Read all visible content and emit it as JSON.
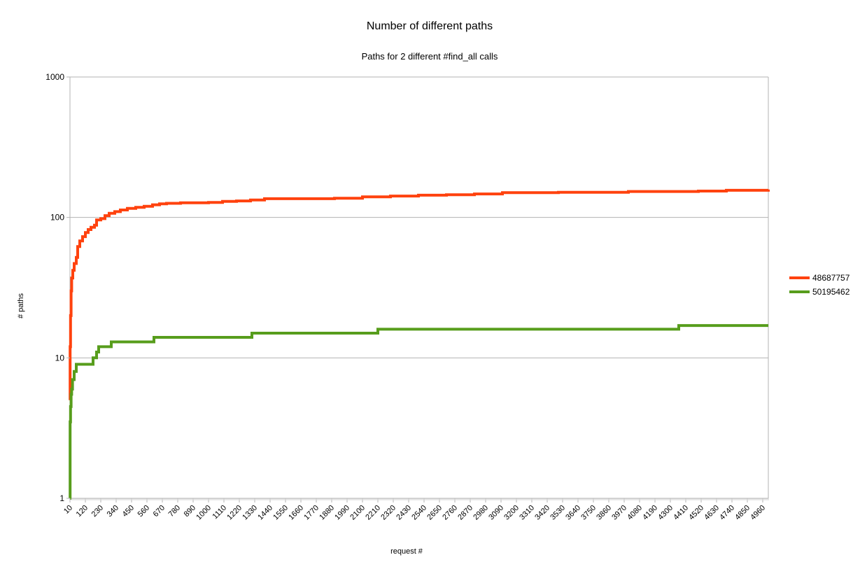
{
  "chart_data": {
    "type": "line",
    "title": "Number of different paths",
    "subtitle": "Paths for 2 different #find_all calls",
    "xlabel": "request #",
    "ylabel": "# paths",
    "yscale": "log",
    "ylim": [
      1,
      1000
    ],
    "xlim": [
      10,
      5000
    ],
    "y_ticks": [
      "1",
      "10",
      "100",
      "1000"
    ],
    "x_tick_labels": [
      "10",
      "120",
      "230",
      "340",
      "450",
      "560",
      "670",
      "780",
      "890",
      "1000",
      "1110",
      "1220",
      "1330",
      "1440",
      "1550",
      "1660",
      "1770",
      "1880",
      "1990",
      "2100",
      "2210",
      "2320",
      "2430",
      "2540",
      "2650",
      "2760",
      "2870",
      "2980",
      "3090",
      "3200",
      "3310",
      "3420",
      "3530",
      "3640",
      "3750",
      "3860",
      "3970",
      "4080",
      "4190",
      "4300",
      "4410",
      "4520",
      "4630",
      "4740",
      "4850",
      "4960"
    ],
    "grid": true,
    "legend_position": "right",
    "series": [
      {
        "name": "48687757",
        "color": "#ff420e",
        "points": [
          [
            10,
            5
          ],
          [
            11,
            12
          ],
          [
            14,
            20
          ],
          [
            18,
            30
          ],
          [
            22,
            37
          ],
          [
            30,
            42
          ],
          [
            40,
            47
          ],
          [
            55,
            52
          ],
          [
            65,
            62
          ],
          [
            80,
            68
          ],
          [
            100,
            73
          ],
          [
            120,
            78
          ],
          [
            140,
            82
          ],
          [
            160,
            85
          ],
          [
            185,
            88
          ],
          [
            200,
            96
          ],
          [
            230,
            98
          ],
          [
            260,
            103
          ],
          [
            290,
            107
          ],
          [
            330,
            110
          ],
          [
            370,
            113
          ],
          [
            420,
            116
          ],
          [
            480,
            118
          ],
          [
            540,
            120
          ],
          [
            600,
            123
          ],
          [
            650,
            125
          ],
          [
            700,
            126
          ],
          [
            800,
            127
          ],
          [
            900,
            127
          ],
          [
            1000,
            128
          ],
          [
            1100,
            130
          ],
          [
            1200,
            131
          ],
          [
            1300,
            133
          ],
          [
            1400,
            136
          ],
          [
            1500,
            136
          ],
          [
            1700,
            136
          ],
          [
            1900,
            137
          ],
          [
            2100,
            140
          ],
          [
            2300,
            142
          ],
          [
            2500,
            144
          ],
          [
            2700,
            145
          ],
          [
            2900,
            147
          ],
          [
            3100,
            150
          ],
          [
            3500,
            151
          ],
          [
            4000,
            153
          ],
          [
            4500,
            154
          ],
          [
            4700,
            156
          ],
          [
            5000,
            158
          ]
        ]
      },
      {
        "name": "50195462",
        "color": "#579d1c",
        "points": [
          [
            10,
            1
          ],
          [
            11,
            3.5
          ],
          [
            14,
            4.5
          ],
          [
            18,
            5.5
          ],
          [
            22,
            6
          ],
          [
            28,
            7
          ],
          [
            40,
            8
          ],
          [
            55,
            9
          ],
          [
            170,
            9
          ],
          [
            175,
            10
          ],
          [
            200,
            11
          ],
          [
            215,
            12
          ],
          [
            300,
            12
          ],
          [
            305,
            13
          ],
          [
            600,
            13
          ],
          [
            610,
            14
          ],
          [
            1300,
            14
          ],
          [
            1310,
            15
          ],
          [
            2200,
            15
          ],
          [
            2210,
            16
          ],
          [
            4350,
            16
          ],
          [
            4360,
            17
          ],
          [
            5000,
            17
          ]
        ]
      }
    ]
  }
}
